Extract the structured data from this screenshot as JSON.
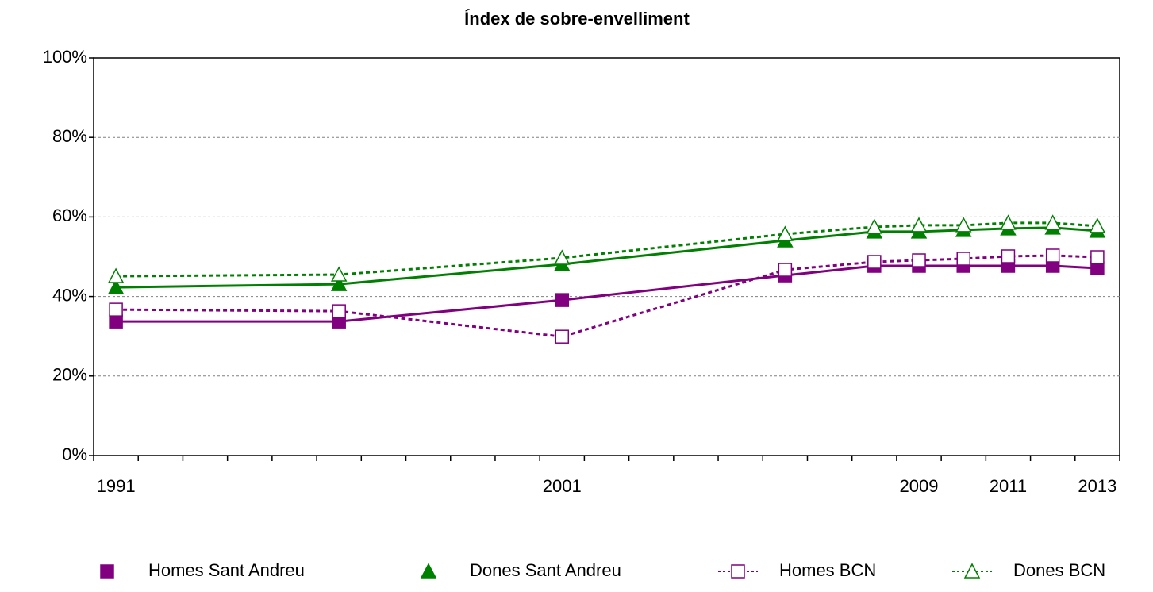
{
  "chart_data": {
    "type": "line",
    "title": "Índex de sobre-envelliment",
    "categories": [
      "1991",
      null,
      null,
      null,
      null,
      null,
      null,
      null,
      null,
      null,
      "2001",
      null,
      null,
      null,
      null,
      null,
      null,
      null,
      "2009",
      null,
      "2011",
      null,
      "2013"
    ],
    "ylim": [
      0,
      100
    ],
    "yticks": [
      {
        "value": 0,
        "label": "0%"
      },
      {
        "value": 20,
        "label": "20%"
      },
      {
        "value": 40,
        "label": "40%"
      },
      {
        "value": 60,
        "label": "60%"
      },
      {
        "value": 80,
        "label": "80%"
      },
      {
        "value": 100,
        "label": "100%"
      }
    ],
    "grid": true,
    "legend": "bottom",
    "series": [
      {
        "name": "Homes Sant Andreu",
        "color": "#800080",
        "marker": "square",
        "filled": true,
        "line": "solid",
        "values": [
          33.7,
          null,
          null,
          null,
          null,
          33.7,
          null,
          null,
          null,
          null,
          39.1,
          null,
          null,
          null,
          null,
          45.3,
          null,
          47.7,
          47.7,
          47.7,
          47.7,
          47.7,
          47.1
        ]
      },
      {
        "name": "Dones Sant Andreu",
        "color": "#008000",
        "marker": "triangle",
        "filled": true,
        "line": "solid",
        "values": [
          42.3,
          null,
          null,
          null,
          null,
          43.1,
          null,
          null,
          null,
          null,
          48.1,
          null,
          null,
          null,
          null,
          54.1,
          null,
          56.3,
          56.3,
          56.7,
          57.1,
          57.3,
          56.5
        ]
      },
      {
        "name": "Homes BCN",
        "color": "#800080",
        "marker": "square",
        "filled": false,
        "line": "dashed",
        "values": [
          36.7,
          null,
          null,
          null,
          null,
          36.3,
          null,
          null,
          null,
          null,
          29.9,
          null,
          null,
          null,
          null,
          46.7,
          null,
          48.7,
          49.1,
          49.5,
          50.1,
          50.3,
          49.9
        ]
      },
      {
        "name": "Dones BCN",
        "color": "#008000",
        "marker": "triangle",
        "filled": false,
        "line": "dashed",
        "values": [
          45.1,
          null,
          null,
          null,
          null,
          45.5,
          null,
          null,
          null,
          null,
          49.7,
          null,
          null,
          null,
          null,
          55.7,
          null,
          57.5,
          57.9,
          57.9,
          58.5,
          58.5,
          57.7
        ]
      }
    ]
  }
}
